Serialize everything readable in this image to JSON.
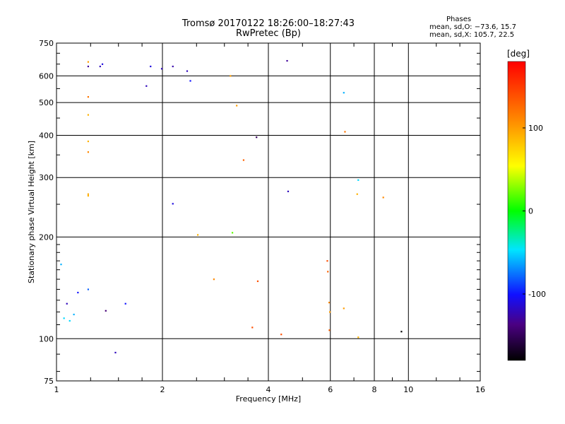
{
  "chart_data": {
    "type": "scatter",
    "title": "Tromsø 20170122 18:26:00–18:27:43",
    "subtitle": "RwPretec (Bp)",
    "xlabel": "Frequency [MHz]",
    "ylabel": "Stationary phase Virtual Height [km]",
    "xscale": "log",
    "yscale": "log",
    "xlim": [
      1,
      16
    ],
    "ylim": [
      75,
      750
    ],
    "xticks": [
      1,
      2,
      4,
      6,
      8,
      10,
      16
    ],
    "yticks": [
      75,
      100,
      200,
      300,
      400,
      500,
      600,
      750
    ],
    "grid": true,
    "phase_legend": {
      "heading": "Phases",
      "line_o": "mean, sd,O: −73.6, 15.7",
      "line_x": "mean, sd,X: 105.7, 22.5"
    },
    "colorbar": {
      "label": "[deg]",
      "range": [
        -180,
        180
      ],
      "ticks": [
        -100,
        0,
        100
      ]
    },
    "series": [
      {
        "points": [
          [
            1.23,
            640,
            -130
          ],
          [
            1.23,
            660,
            100
          ],
          [
            1.35,
            650,
            -110
          ],
          [
            1.85,
            640,
            -110
          ],
          [
            1.99,
            630,
            -120
          ],
          [
            2.14,
            640,
            -125
          ],
          [
            2.35,
            620,
            -120
          ],
          [
            2.4,
            580,
            -100
          ],
          [
            4.52,
            665,
            -130
          ],
          [
            6.55,
            535,
            -60
          ],
          [
            6.6,
            410,
            120
          ],
          [
            7.2,
            295,
            -50
          ],
          [
            7.15,
            268,
            90
          ],
          [
            4.55,
            273,
            -120
          ],
          [
            8.48,
            262,
            110
          ],
          [
            3.7,
            395,
            -150
          ],
          [
            3.12,
            600,
            100
          ],
          [
            3.25,
            490,
            100
          ],
          [
            1.23,
            520,
            120
          ],
          [
            1.23,
            460,
            90
          ],
          [
            1.23,
            357,
            110
          ],
          [
            1.23,
            384,
            90
          ],
          [
            1.23,
            265,
            90
          ],
          [
            1.23,
            268,
            95
          ],
          [
            1.03,
            166,
            -60
          ],
          [
            1.05,
            115,
            -50
          ],
          [
            1.07,
            127,
            -120
          ],
          [
            1.09,
            113,
            -50
          ],
          [
            1.12,
            118,
            -60
          ],
          [
            1.15,
            137,
            -100
          ],
          [
            1.23,
            140,
            -80
          ],
          [
            1.38,
            121,
            -140
          ],
          [
            1.47,
            91,
            -120
          ],
          [
            1.57,
            127,
            -100
          ],
          [
            2.14,
            251,
            -110
          ],
          [
            2.52,
            203,
            90
          ],
          [
            3.16,
            206,
            20
          ],
          [
            3.4,
            338,
            130
          ],
          [
            3.73,
            148,
            140
          ],
          [
            2.8,
            150,
            110
          ],
          [
            3.6,
            108,
            140
          ],
          [
            4.35,
            103,
            140
          ],
          [
            5.88,
            170,
            140
          ],
          [
            5.9,
            158,
            130
          ],
          [
            5.95,
            128,
            110
          ],
          [
            5.98,
            120,
            100
          ],
          [
            5.96,
            106,
            130
          ],
          [
            6.55,
            123,
            100
          ],
          [
            7.2,
            101,
            90
          ],
          [
            9.55,
            105,
            -180
          ],
          [
            1.33,
            640,
            -120
          ],
          [
            1.8,
            560,
            -120
          ]
        ]
      }
    ]
  }
}
